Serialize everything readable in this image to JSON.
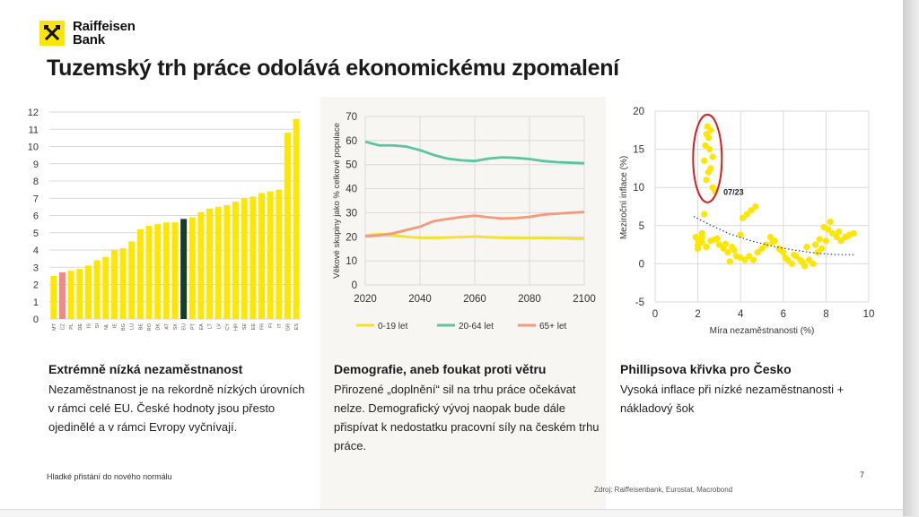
{
  "brand": {
    "line1": "Raiffeisen",
    "line2": "Bank"
  },
  "slide": {
    "title": "Tuzemský trh práce odolává ekonomickému zpomalení",
    "footer": "Hladké přistání do nového normálu",
    "page_number": "7",
    "source": "Zdroj: Raiffeisenbank, Eurostat, Macrobond"
  },
  "columns": [
    {
      "title": "Extrémně nízká nezaměstnanost",
      "text": "Nezaměstnanost je na rekordně nízkých úrovních v rámci celé EU. České hodnoty jsou přesto ojedinělé a v rámci Evropy vyčnívají."
    },
    {
      "title": "Demografie, aneb foukat proti větru",
      "text": "Přirozené „doplnění“ sil na trhu práce očekávat nelze. Demografický vývoj naopak bude dále přispívat k nedostatku pracovní síly na českém trhu práce."
    },
    {
      "title": "Phillipsova křivka pro Česko",
      "text": "Vysoká inflace při nízké nezaměstnanosti + nákladový šok"
    }
  ],
  "chart_data": [
    {
      "type": "bar",
      "categories": [
        "MT",
        "CZ",
        "PL",
        "DE",
        "IS",
        "SI",
        "NL",
        "IE",
        "BG",
        "LU",
        "BE",
        "RO",
        "DK",
        "AT",
        "SK",
        "EU",
        "PT",
        "EA",
        "LT",
        "LV",
        "CY",
        "HR",
        "SE",
        "EE",
        "FR",
        "FI",
        "IT",
        "GR",
        "ES"
      ],
      "values": [
        2.5,
        2.7,
        2.8,
        2.9,
        3.1,
        3.4,
        3.6,
        4.0,
        4.1,
        4.5,
        5.2,
        5.4,
        5.5,
        5.6,
        5.6,
        5.8,
        5.9,
        6.2,
        6.4,
        6.5,
        6.6,
        6.8,
        7.0,
        7.1,
        7.3,
        7.4,
        7.5,
        10.8,
        11.6
      ],
      "highlight": {
        "CZ": "#f08a8a",
        "EU": "#173b2c"
      },
      "bar_color": "#fee600",
      "ylim": [
        0,
        12
      ],
      "yticks": [
        0,
        1,
        2,
        3,
        4,
        5,
        6,
        7,
        8,
        9,
        10,
        11,
        12
      ],
      "grid": true
    },
    {
      "type": "line",
      "ylabel": "Věkové skupiny jako % celkové populace",
      "xlim": [
        2020,
        2100
      ],
      "ylim": [
        0,
        70
      ],
      "xticks": [
        2020,
        2040,
        2060,
        2080,
        2100
      ],
      "yticks": [
        0,
        10,
        20,
        30,
        40,
        50,
        60,
        70
      ],
      "legend_position": "bottom",
      "series": [
        {
          "name": "0-19 let",
          "color": "#f5e12a",
          "x": [
            2020,
            2025,
            2030,
            2035,
            2040,
            2045,
            2050,
            2055,
            2060,
            2065,
            2070,
            2075,
            2080,
            2085,
            2090,
            2095,
            2100
          ],
          "y": [
            20.5,
            21.2,
            20.6,
            20.0,
            19.6,
            19.5,
            19.7,
            19.9,
            20.1,
            19.8,
            19.6,
            19.5,
            19.5,
            19.5,
            19.4,
            19.3,
            19.2
          ]
        },
        {
          "name": "20-64 let",
          "color": "#5cc4a3",
          "x": [
            2020,
            2025,
            2030,
            2035,
            2040,
            2045,
            2050,
            2055,
            2060,
            2065,
            2070,
            2075,
            2080,
            2085,
            2090,
            2095,
            2100
          ],
          "y": [
            59.5,
            58.0,
            58.0,
            57.5,
            56.0,
            54.0,
            52.5,
            51.8,
            51.5,
            52.5,
            53.0,
            52.8,
            52.3,
            51.5,
            51.0,
            50.8,
            50.6
          ]
        },
        {
          "name": "65+ let",
          "color": "#f49a7a",
          "x": [
            2020,
            2025,
            2030,
            2035,
            2040,
            2045,
            2050,
            2055,
            2060,
            2065,
            2070,
            2075,
            2080,
            2085,
            2090,
            2095,
            2100
          ],
          "y": [
            20.2,
            20.6,
            21.4,
            22.8,
            24.2,
            26.5,
            27.4,
            28.2,
            28.8,
            28.1,
            27.6,
            27.8,
            28.3,
            29.2,
            29.6,
            30.0,
            30.3
          ]
        }
      ]
    },
    {
      "type": "scatter",
      "xlabel": "Míra nezaměstnanosti (%)",
      "ylabel": "Meziroční inflace (%)",
      "xlim": [
        0,
        10
      ],
      "ylim": [
        -5,
        20
      ],
      "xticks": [
        0,
        2,
        4,
        6,
        8,
        10
      ],
      "yticks": [
        -5,
        0,
        5,
        10,
        15,
        20
      ],
      "annotation": "07/23",
      "color": "#fee600",
      "trend": [
        [
          1.8,
          6.2
        ],
        [
          2.5,
          5.2
        ],
        [
          3.5,
          3.9
        ],
        [
          4.5,
          3.0
        ],
        [
          5.5,
          2.3
        ],
        [
          6.5,
          1.8
        ],
        [
          7.5,
          1.4
        ],
        [
          8.5,
          1.2
        ],
        [
          9.3,
          1.2
        ]
      ],
      "x": [
        2.0,
        2.1,
        2.2,
        2.3,
        2.35,
        2.4,
        2.45,
        2.5,
        2.55,
        2.6,
        2.6,
        2.7,
        2.7,
        2.8,
        2.4,
        2.5,
        2.3,
        2.2,
        2.1,
        2.0,
        1.9,
        2.0,
        2.2,
        2.4,
        2.6,
        2.8,
        3.0,
        3.2,
        3.4,
        3.6,
        3.8,
        4.0,
        4.2,
        4.4,
        4.6,
        4.3,
        4.5,
        4.7,
        4.1,
        4.8,
        5.0,
        5.2,
        5.4,
        5.6,
        5.8,
        6.0,
        6.2,
        6.4,
        6.6,
        6.8,
        7.0,
        7.2,
        7.4,
        7.6,
        7.8,
        8.0,
        8.2,
        8.1,
        8.3,
        8.5,
        8.7,
        8.9,
        9.1,
        9.3,
        7.5,
        7.7,
        6.5,
        6.9,
        5.5,
        3.7,
        3.3,
        2.9,
        3.5,
        4.0,
        7.9,
        6.1,
        5.9,
        7.1,
        8.6,
        9.0
      ],
      "y": [
        3.2,
        2.8,
        3.5,
        13.5,
        15.5,
        17.0,
        18.0,
        16.5,
        15.0,
        17.5,
        12.5,
        14.0,
        10.0,
        9.5,
        11.0,
        12.0,
        6.5,
        4.0,
        3.0,
        2.5,
        3.5,
        2.0,
        2.8,
        2.2,
        3.0,
        3.2,
        2.5,
        2.0,
        1.5,
        2.2,
        1.0,
        0.8,
        0.5,
        1.0,
        0.5,
        6.5,
        7.0,
        7.5,
        6.0,
        1.5,
        2.0,
        2.5,
        3.5,
        3.0,
        2.0,
        1.5,
        0.5,
        0.0,
        1.0,
        0.5,
        -0.3,
        0.5,
        0.0,
        1.5,
        2.0,
        3.0,
        5.5,
        4.5,
        4.0,
        3.5,
        3.0,
        3.5,
        3.8,
        4.0,
        2.5,
        3.2,
        1.2,
        0.2,
        2.8,
        1.8,
        2.6,
        3.3,
        0.3,
        3.8,
        4.8,
        0.8,
        1.8,
        2.2,
        4.2,
        3.6
      ]
    }
  ]
}
